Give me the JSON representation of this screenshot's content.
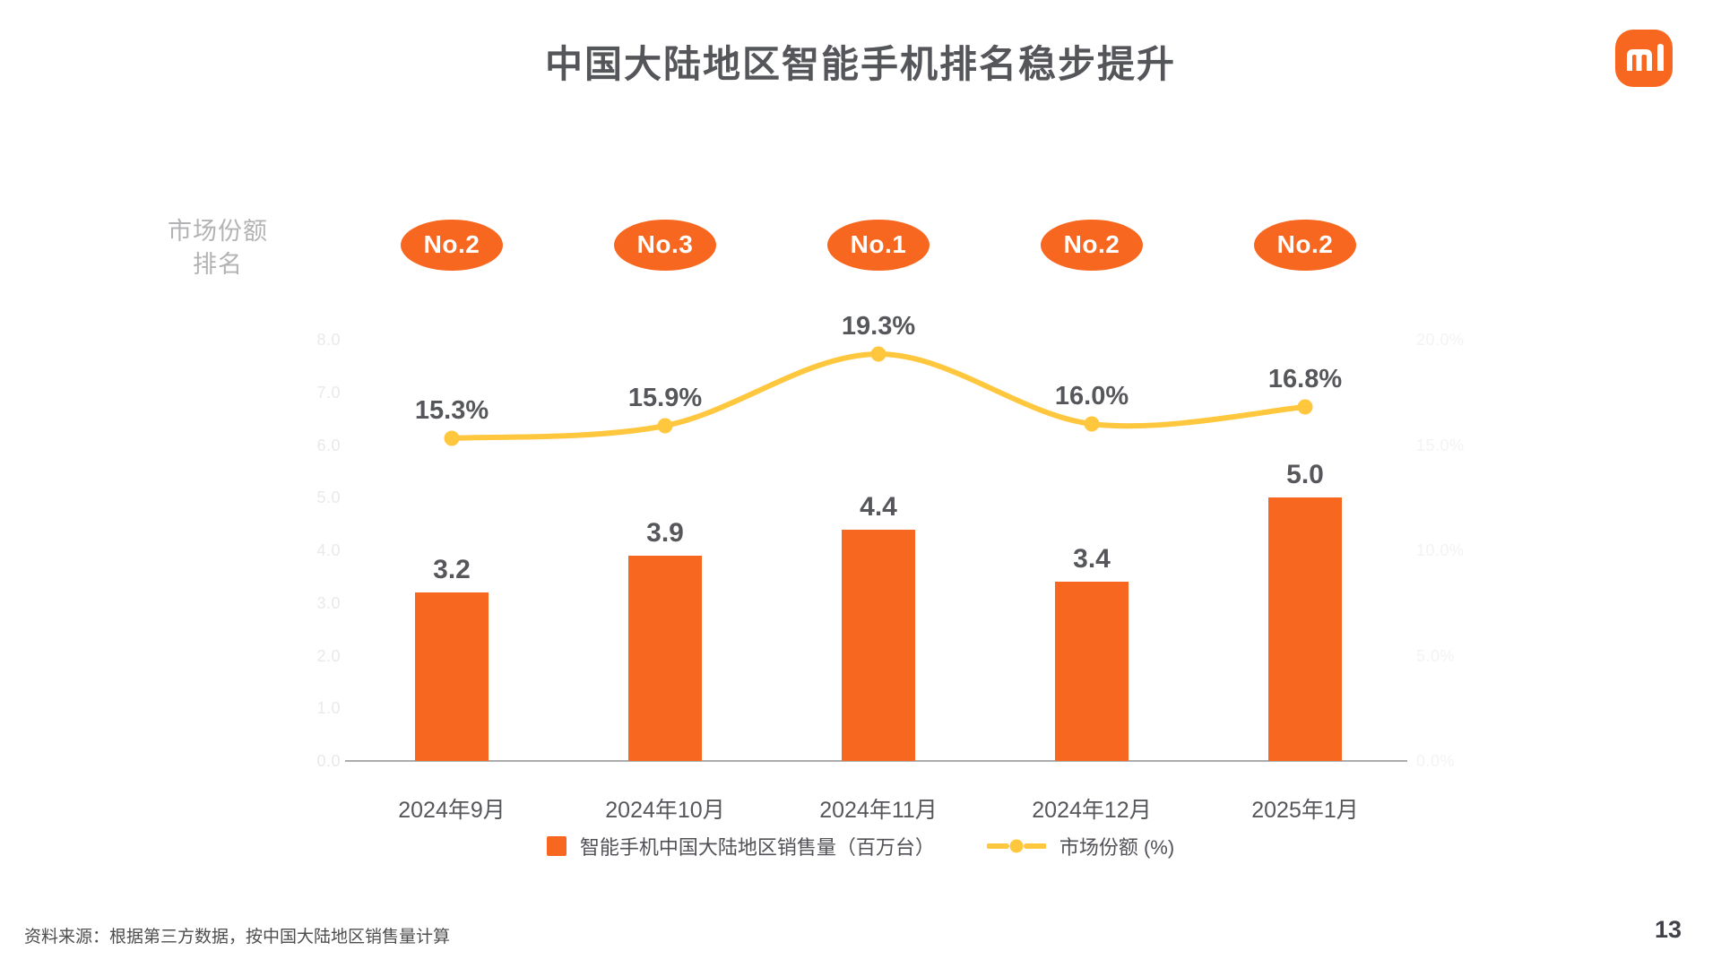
{
  "slide": {
    "title": "中国大陆地区智能手机排名稳步提升",
    "footer": "资料来源：根据第三方数据，按中国大陆地区销售量计算",
    "page_number": "13"
  },
  "icons": {
    "logo": "xiaomi-mi-logo"
  },
  "rank_label": {
    "line1": "市场份额",
    "line2": "排名"
  },
  "colors": {
    "orange": "#F8671F",
    "yellow": "#FFC73E",
    "dark_text": "#55565A",
    "axis_line": "#ACACAC",
    "left_tick": "#E9E9EB",
    "right_tick": "#F3F3F4",
    "rank_label_gray": "#B3B3B5",
    "badge_text": "#FFFFFF"
  },
  "chart_data": {
    "type": "bar+line combo",
    "title": "中国大陆地区智能手机排名稳步提升",
    "categories": [
      "2024年9月",
      "2024年10月",
      "2024年11月",
      "2024年12月",
      "2025年1月"
    ],
    "rank_badges": [
      "No.2",
      "No.3",
      "No.1",
      "No.2",
      "No.2"
    ],
    "series": [
      {
        "name": "智能手机中国大陆地区销售量（百万台）",
        "type": "bar",
        "unit": "百万台",
        "values": [
          3.2,
          3.9,
          4.4,
          3.4,
          5.0
        ],
        "labels": [
          "3.2",
          "3.9",
          "4.4",
          "3.4",
          "5.0"
        ]
      },
      {
        "name": "市场份额 (%)",
        "type": "line",
        "unit": "%",
        "values": [
          15.3,
          15.9,
          19.3,
          16.0,
          16.8
        ],
        "labels": [
          "15.3%",
          "15.9%",
          "19.3%",
          "16.0%",
          "16.8%"
        ]
      }
    ],
    "left_axis": {
      "min": 0,
      "max": 8,
      "step": 1,
      "ticks": [
        "0.0",
        "1.0",
        "2.0",
        "3.0",
        "4.0",
        "5.0",
        "6.0",
        "7.0",
        "8.0"
      ]
    },
    "right_axis": {
      "min": 0,
      "max": 20,
      "step": 5,
      "ticks": [
        "0.0%",
        "5.0%",
        "10.0%",
        "15.0%",
        "20.0%"
      ]
    },
    "grid": false,
    "legend_position": "bottom-center"
  }
}
